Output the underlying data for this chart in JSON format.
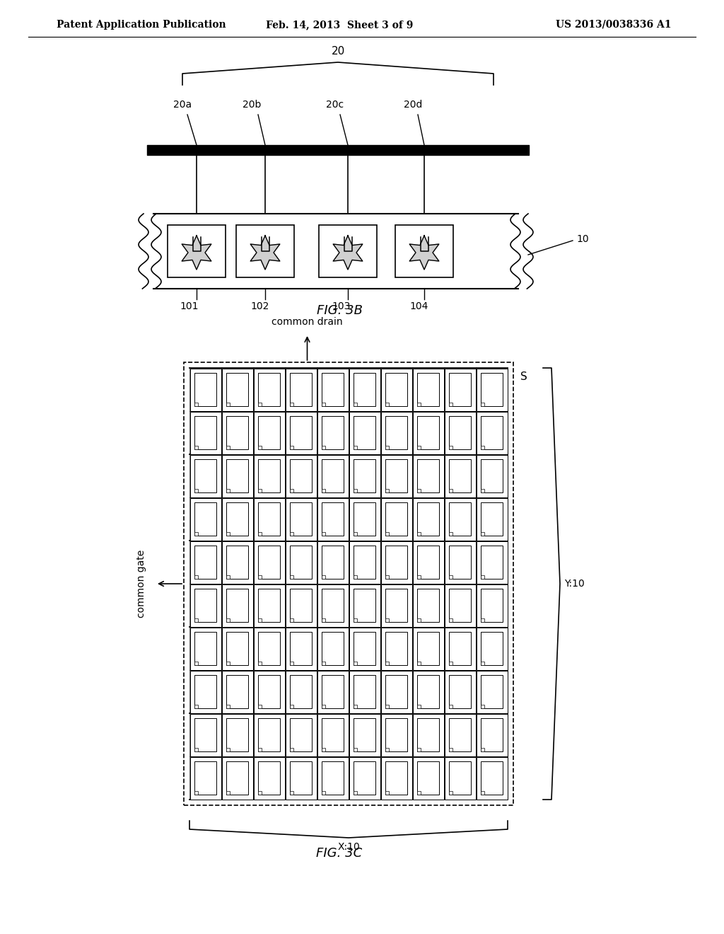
{
  "header_left": "Patent Application Publication",
  "header_mid": "Feb. 14, 2013  Sheet 3 of 9",
  "header_right": "US 2013/0038336 A1",
  "fig3b_label": "FIG. 3B",
  "fig3c_label": "FIG. 3C",
  "label_20": "20",
  "label_20a": "20a",
  "label_20b": "20b",
  "label_20c": "20c",
  "label_20d": "20d",
  "label_101": "101",
  "label_102": "102",
  "label_103": "103",
  "label_104": "104",
  "label_10": "10",
  "label_common_drain": "common drain",
  "label_common_gate": "common gate",
  "label_S": "S",
  "label_Y10": "Y:10",
  "label_X10": "X:10",
  "grid_rows": 10,
  "grid_cols": 10,
  "bg_color": "#ffffff",
  "line_color": "#000000"
}
